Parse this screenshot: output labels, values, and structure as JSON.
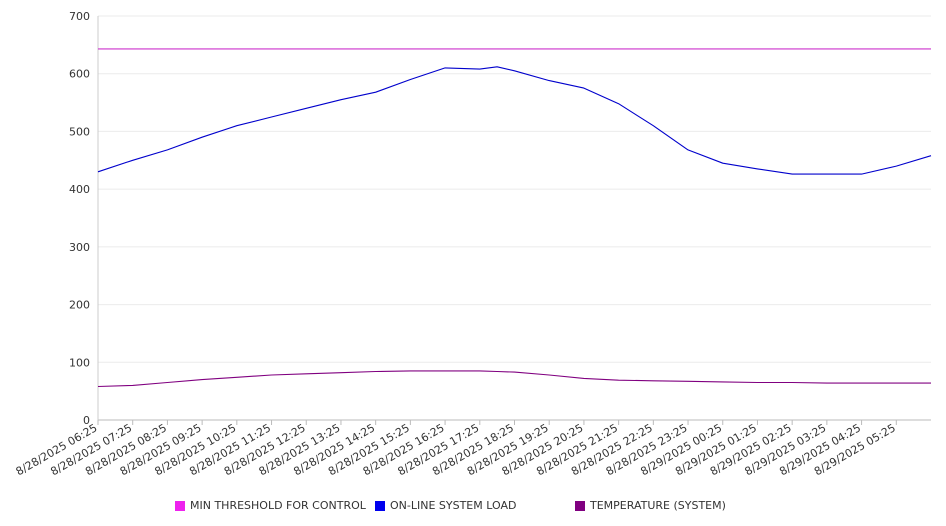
{
  "chart_data": {
    "type": "line",
    "title": "",
    "xlabel": "",
    "ylabel": "",
    "ylim": [
      0,
      700
    ],
    "y_ticks": [
      "0",
      "100",
      "200",
      "300",
      "400",
      "500",
      "600",
      "700"
    ],
    "x_tick_labels": [
      "8/28/2025 06:25",
      "8/28/2025 07:25",
      "8/28/2025 08:25",
      "8/28/2025 09:25",
      "8/28/2025 10:25",
      "8/28/2025 11:25",
      "8/28/2025 12:25",
      "8/28/2025 13:25",
      "8/28/2025 14:25",
      "8/28/2025 15:25",
      "8/28/2025 16:25",
      "8/28/2025 17:25",
      "8/28/2025 18:25",
      "8/28/2025 19:25",
      "8/28/2025 20:25",
      "8/28/2025 21:25",
      "8/28/2025 22:25",
      "8/28/2025 23:25",
      "8/29/2025 00:25",
      "8/29/2025 01:25",
      "8/29/2025 02:25",
      "8/29/2025 03:25",
      "8/29/2025 04:25",
      "8/29/2025 05:25"
    ],
    "x": [
      "8/28/2025 06:25",
      "8/28/2025 07:25",
      "8/28/2025 08:25",
      "8/28/2025 09:25",
      "8/28/2025 10:25",
      "8/28/2025 11:25",
      "8/28/2025 12:25",
      "8/28/2025 13:25",
      "8/28/2025 14:25",
      "8/28/2025 15:25",
      "8/28/2025 16:25",
      "8/28/2025 17:25",
      "8/28/2025 17:55",
      "8/28/2025 18:25",
      "8/28/2025 19:25",
      "8/28/2025 20:25",
      "8/28/2025 21:25",
      "8/28/2025 22:25",
      "8/28/2025 23:25",
      "8/29/2025 00:25",
      "8/29/2025 01:25",
      "8/29/2025 02:25",
      "8/29/2025 03:25",
      "8/29/2025 04:25",
      "8/29/2025 05:25",
      "8/29/2025 06:25"
    ],
    "grid": true,
    "legend_position": "bottom",
    "series": [
      {
        "name": "MIN THRESHOLD FOR CONTROL",
        "color": "#cc33cc",
        "values": [
          643,
          643,
          643,
          643,
          643,
          643,
          643,
          643,
          643,
          643,
          643,
          643,
          643,
          643,
          643,
          643,
          643,
          643,
          643,
          643,
          643,
          643,
          643,
          643,
          643,
          643
        ]
      },
      {
        "name": "ON-LINE SYSTEM LOAD",
        "color": "#0000cc",
        "values": [
          430,
          450,
          468,
          490,
          510,
          525,
          540,
          555,
          568,
          590,
          610,
          608,
          612,
          605,
          588,
          575,
          548,
          510,
          468,
          445,
          435,
          426,
          426,
          426,
          440,
          458
        ]
      },
      {
        "name": "TEMPERATURE (SYSTEM)",
        "color": "#800080",
        "values": [
          58,
          60,
          65,
          70,
          74,
          78,
          80,
          82,
          84,
          85,
          85,
          85,
          84,
          83,
          78,
          72,
          69,
          68,
          67,
          66,
          65,
          65,
          64,
          64,
          64,
          64
        ]
      }
    ]
  },
  "legend": {
    "items": [
      {
        "label": "MIN THRESHOLD FOR CONTROL",
        "color": "#ee22ee"
      },
      {
        "label": "ON-LINE SYSTEM LOAD",
        "color": "#0000ee"
      },
      {
        "label": "TEMPERATURE (SYSTEM)",
        "color": "#800080"
      }
    ]
  }
}
